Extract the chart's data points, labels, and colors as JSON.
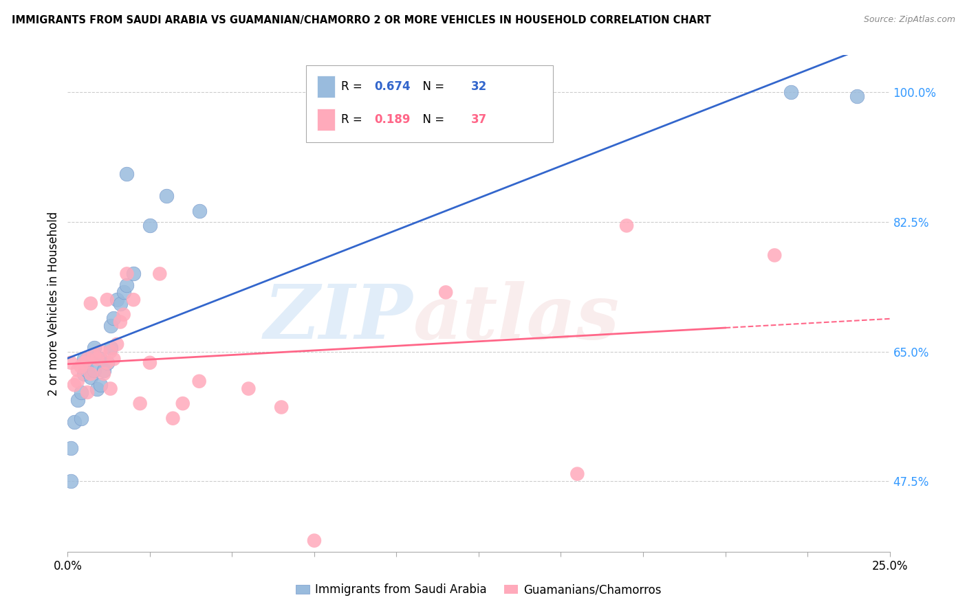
{
  "title": "IMMIGRANTS FROM SAUDI ARABIA VS GUAMANIAN/CHAMORRO 2 OR MORE VEHICLES IN HOUSEHOLD CORRELATION CHART",
  "source": "Source: ZipAtlas.com",
  "ylabel": "2 or more Vehicles in Household",
  "legend_label1": "Immigrants from Saudi Arabia",
  "legend_label2": "Guamanians/Chamorros",
  "r1": "0.674",
  "n1": "32",
  "r2": "0.189",
  "n2": "37",
  "color_blue": "#99BBDD",
  "color_pink": "#FFAABB",
  "color_blue_line": "#3366CC",
  "color_pink_line": "#FF6688",
  "color_axis_label": "#3399FF",
  "blue_points_x": [
    0.001,
    0.001,
    0.002,
    0.003,
    0.004,
    0.004,
    0.005,
    0.005,
    0.006,
    0.006,
    0.007,
    0.008,
    0.008,
    0.009,
    0.01,
    0.01,
    0.011,
    0.012,
    0.013,
    0.013,
    0.014,
    0.015,
    0.016,
    0.017,
    0.018,
    0.02,
    0.025,
    0.03,
    0.04,
    0.018,
    0.22,
    0.24
  ],
  "blue_points_y": [
    0.52,
    0.475,
    0.555,
    0.585,
    0.595,
    0.56,
    0.62,
    0.64,
    0.625,
    0.64,
    0.615,
    0.625,
    0.655,
    0.6,
    0.605,
    0.64,
    0.625,
    0.635,
    0.655,
    0.685,
    0.695,
    0.72,
    0.715,
    0.73,
    0.74,
    0.755,
    0.82,
    0.86,
    0.84,
    0.89,
    1.0,
    0.995
  ],
  "pink_points_x": [
    0.001,
    0.002,
    0.003,
    0.003,
    0.004,
    0.005,
    0.006,
    0.006,
    0.007,
    0.007,
    0.008,
    0.009,
    0.01,
    0.011,
    0.012,
    0.012,
    0.013,
    0.013,
    0.014,
    0.015,
    0.016,
    0.017,
    0.018,
    0.02,
    0.022,
    0.025,
    0.028,
    0.032,
    0.035,
    0.04,
    0.055,
    0.065,
    0.075,
    0.115,
    0.155,
    0.17,
    0.215
  ],
  "pink_points_y": [
    0.635,
    0.605,
    0.625,
    0.61,
    0.63,
    0.635,
    0.64,
    0.595,
    0.62,
    0.715,
    0.645,
    0.64,
    0.65,
    0.62,
    0.635,
    0.72,
    0.65,
    0.6,
    0.64,
    0.66,
    0.69,
    0.7,
    0.755,
    0.72,
    0.58,
    0.635,
    0.755,
    0.56,
    0.58,
    0.61,
    0.6,
    0.575,
    0.395,
    0.73,
    0.485,
    0.82,
    0.78
  ],
  "xlim": [
    0.0,
    0.25
  ],
  "ylim": [
    0.38,
    1.05
  ],
  "y_ticks": [
    0.475,
    0.65,
    0.825,
    1.0
  ],
  "y_tick_labels": [
    "47.5%",
    "65.0%",
    "82.5%",
    "100.0%"
  ],
  "x_ticks": [
    0.0,
    0.025,
    0.05,
    0.075,
    0.1,
    0.125,
    0.15,
    0.175,
    0.2,
    0.225,
    0.25
  ],
  "x_tick_labels_show": [
    "0.0%",
    "",
    "",
    "",
    "",
    "",
    "",
    "",
    "",
    "",
    "25.0%"
  ]
}
